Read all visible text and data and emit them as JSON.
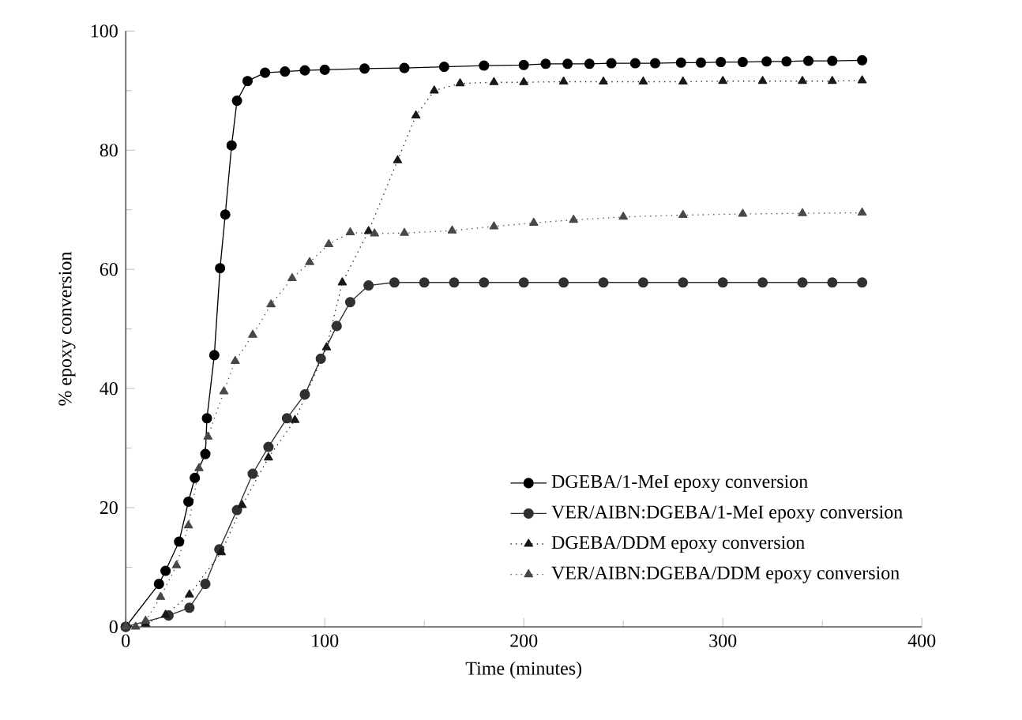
{
  "chart_data": {
    "type": "line",
    "xlabel": "Time (minutes)",
    "ylabel": "% epoxy conversion",
    "xlim": [
      0,
      400
    ],
    "xticks": [
      0,
      100,
      200,
      300,
      400
    ],
    "ylim": [
      0,
      100
    ],
    "yticks": [
      0,
      20,
      40,
      60,
      80,
      100
    ],
    "legend": "bottom right",
    "series": [
      {
        "name": "DGEBA/1-MeI epoxy conversion",
        "color": "#000000",
        "marker": "circle",
        "line_style": "solid",
        "x": [
          0,
          16.7,
          20,
          26.8,
          31.5,
          34.7,
          40,
          40.8,
          44.5,
          47.4,
          50,
          53.2,
          55.9,
          61.2,
          70,
          80,
          90,
          100,
          120,
          140,
          160,
          180,
          200,
          211,
          222,
          233,
          244,
          256,
          266,
          279,
          289,
          299,
          310,
          322,
          332,
          343,
          355,
          370
        ],
        "values": [
          0,
          7.2,
          9.4,
          14.3,
          21,
          25,
          29,
          35,
          45.6,
          60.2,
          69.2,
          80.8,
          88.3,
          91.6,
          93,
          93.2,
          93.4,
          93.5,
          93.7,
          93.8,
          94,
          94.2,
          94.3,
          94.5,
          94.5,
          94.5,
          94.6,
          94.6,
          94.6,
          94.7,
          94.7,
          94.8,
          94.8,
          94.9,
          94.9,
          95,
          95,
          95.1
        ]
      },
      {
        "name": "VER/AIBN:DGEBA/1-MeI epoxy conversion",
        "color": "#303030",
        "marker": "circle",
        "line_style": "solid",
        "x": [
          0,
          10,
          21.5,
          32,
          40,
          47,
          55.9,
          63.8,
          71.7,
          81,
          90,
          98,
          106,
          112.8,
          122,
          135,
          150,
          165,
          180,
          200,
          220,
          240,
          260,
          280,
          300,
          320,
          340,
          355,
          370
        ],
        "values": [
          0,
          null,
          1.9,
          3.2,
          7.2,
          13,
          19.6,
          25.7,
          30.2,
          35,
          39,
          45,
          50.5,
          54.5,
          57.3,
          57.8,
          57.8,
          57.8,
          57.8,
          57.8,
          57.8,
          57.8,
          57.8,
          57.8,
          57.8,
          57.8,
          57.8,
          57.8,
          57.8
        ]
      },
      {
        "name": "DGEBA/DDM epoxy conversion",
        "color": "#181818",
        "marker": "triangle",
        "line_style": "dotted",
        "x": [
          0,
          10,
          20,
          32,
          48,
          58.5,
          71.7,
          85,
          100.9,
          108.8,
          122,
          136.6,
          145.8,
          155,
          168,
          185,
          200,
          220,
          240,
          260,
          280,
          300,
          320,
          340,
          355,
          370
        ],
        "values": [
          0,
          0.5,
          2,
          5.4,
          12.5,
          20.4,
          28.4,
          34.7,
          46.9,
          57.8,
          66.4,
          78.3,
          85.8,
          90,
          91.2,
          91.4,
          91.4,
          91.5,
          91.5,
          91.5,
          91.5,
          91.6,
          91.6,
          91.6,
          91.6,
          91.7
        ]
      },
      {
        "name": "VER/AIBN:DGEBA/DDM epoxy conversion",
        "color": "#484848",
        "marker": "triangle",
        "line_style": "dotted",
        "x": [
          0,
          5,
          10,
          17.5,
          25.5,
          31.5,
          36.8,
          41.3,
          49.3,
          55,
          63.8,
          73,
          83.6,
          92.4,
          102,
          112.8,
          125,
          140,
          164,
          185,
          205,
          225,
          250,
          280,
          310,
          340,
          370
        ],
        "values": [
          0,
          0,
          1,
          5,
          10.3,
          17,
          26.6,
          31.9,
          39.5,
          44.6,
          49,
          54.1,
          58.5,
          61.2,
          64.2,
          66.2,
          66,
          66.1,
          66.5,
          67.2,
          67.8,
          68.3,
          68.8,
          69.1,
          69.3,
          69.4,
          69.5
        ]
      }
    ]
  }
}
